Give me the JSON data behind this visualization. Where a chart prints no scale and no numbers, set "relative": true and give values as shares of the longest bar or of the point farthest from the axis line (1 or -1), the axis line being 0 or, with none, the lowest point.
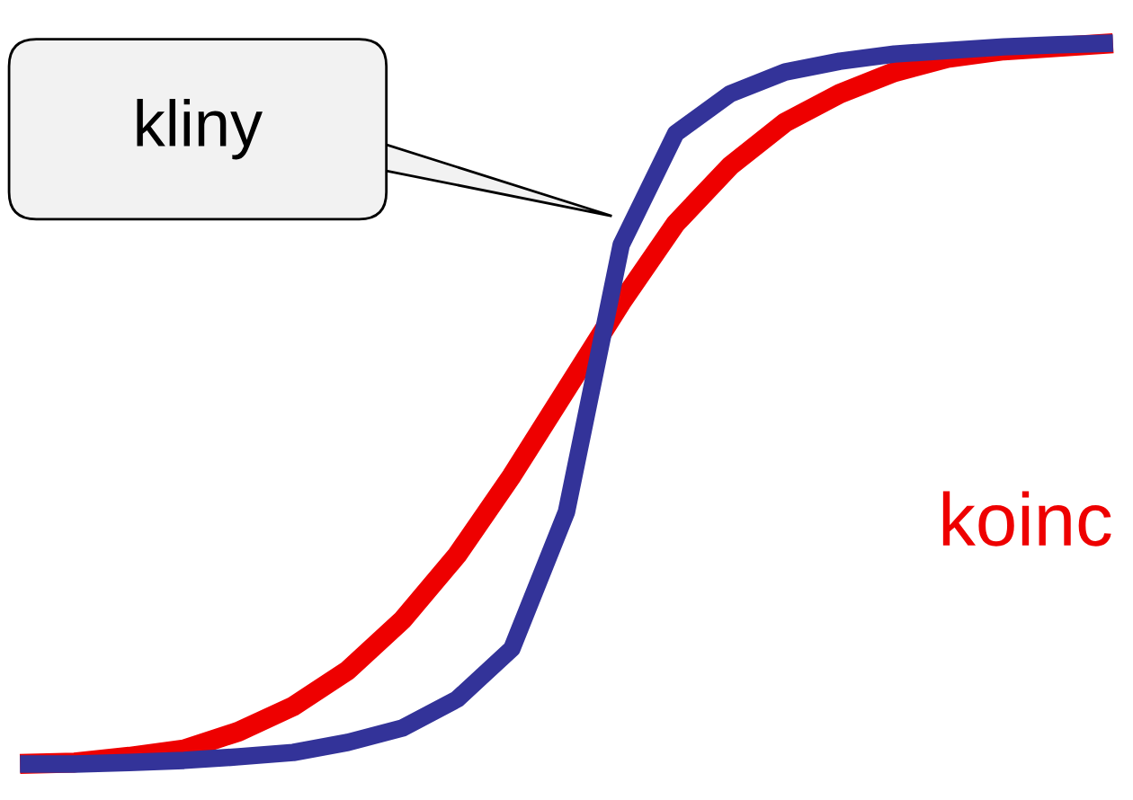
{
  "chart_data": {
    "type": "line",
    "relative": true,
    "legend": false,
    "line_style": "solid",
    "marker": "none",
    "categories": [
      null,
      null,
      null,
      null,
      null,
      null,
      null,
      null,
      null,
      null,
      null,
      null,
      null,
      null,
      null,
      null,
      null,
      null,
      null,
      null,
      null
    ],
    "series": [
      {
        "name": "koinc",
        "color": "#ee0000",
        "values": [
          0,
          0.002,
          0.01,
          0.02,
          0.045,
          0.08,
          0.13,
          0.2,
          0.29,
          0.4,
          0.52,
          0.64,
          0.75,
          0.83,
          0.89,
          0.93,
          0.96,
          0.98,
          0.99,
          0.995,
          1
        ]
      },
      {
        "color": "#333399",
        "values": [
          0,
          0,
          0.002,
          0.005,
          0.01,
          0.016,
          0.03,
          0.05,
          0.09,
          0.16,
          0.35,
          0.72,
          0.875,
          0.93,
          0.96,
          0.975,
          0.985,
          0.99,
          0.995,
          0.998,
          1
        ]
      }
    ],
    "annotations": [
      "kliny"
    ]
  }
}
